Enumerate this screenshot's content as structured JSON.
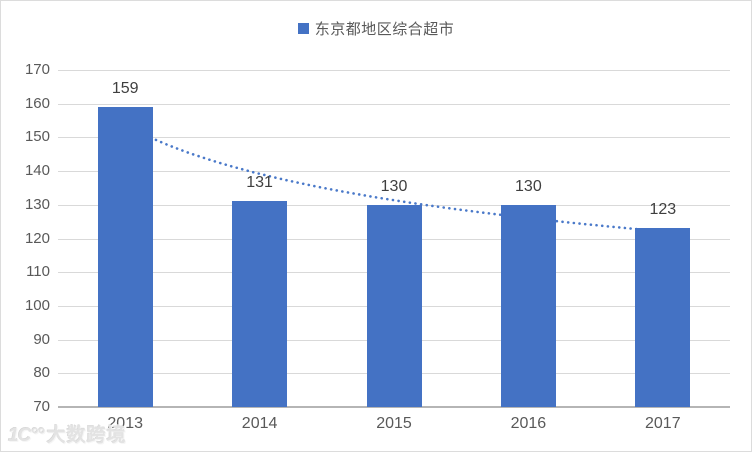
{
  "legend": {
    "label": "东京都地区综合超市"
  },
  "chart_data": {
    "type": "bar",
    "title": "",
    "xlabel": "",
    "ylabel": "",
    "categories": [
      "2013",
      "2014",
      "2015",
      "2016",
      "2017"
    ],
    "series": [
      {
        "name": "东京都地区综合超市",
        "values": [
          159,
          131,
          130,
          130,
          123
        ],
        "color": "#4472C4"
      }
    ],
    "data_labels": [
      "159",
      "131",
      "130",
      "130",
      "123"
    ],
    "ylim": [
      70,
      170
    ],
    "yticks": [
      70,
      80,
      90,
      100,
      110,
      120,
      130,
      140,
      150,
      160,
      170
    ],
    "grid": true,
    "legend_position": "top-center",
    "trendline": {
      "type": "power",
      "style": "dotted",
      "color": "#4a79c9",
      "coef_a": 153.7,
      "coef_b": -0.143,
      "fitted_values": [
        153.7,
        139.2,
        131.8,
        126.1,
        122.1
      ]
    }
  },
  "watermark": {
    "logo": "1C°°",
    "text": "大数跨境"
  },
  "theme": {
    "bar_color": "#4472C4",
    "grid_color": "#d9d9d9",
    "axis_color": "#b5b5b5",
    "tick_label_color": "#595959",
    "data_label_color": "#3f3f3f",
    "legend_text_color": "#595959",
    "background": "#ffffff"
  }
}
